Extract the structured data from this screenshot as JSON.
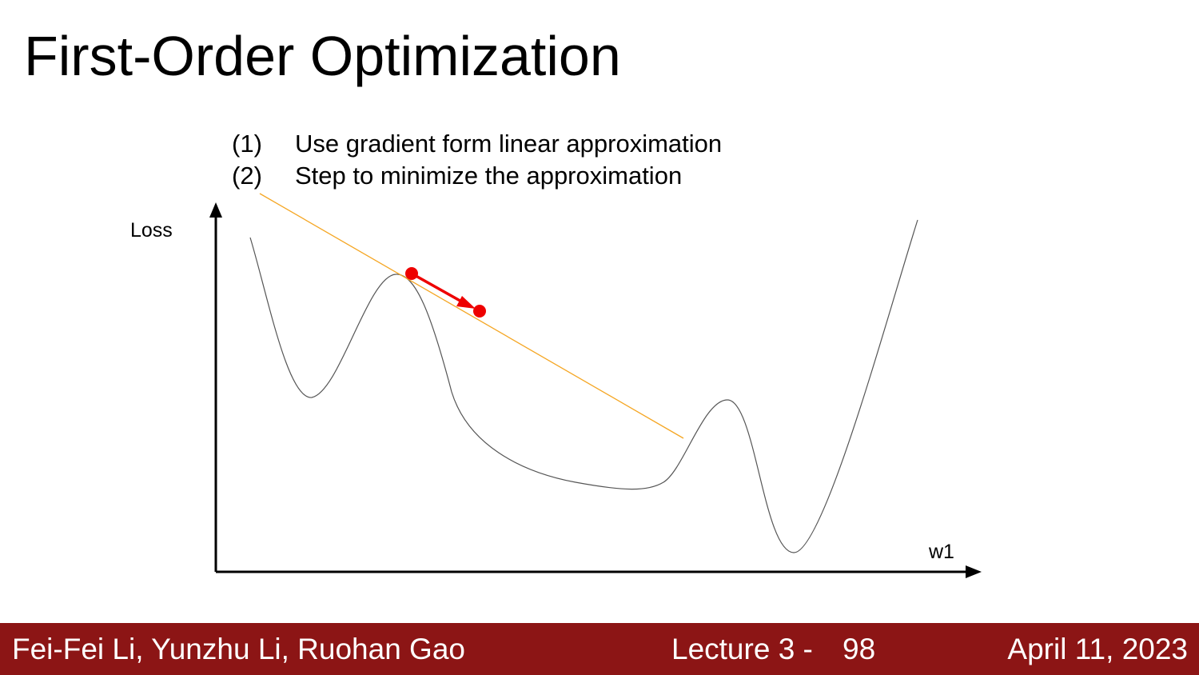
{
  "slide": {
    "title": "First-Order Optimization",
    "steps": [
      {
        "number": "(1)",
        "text": "Use gradient form linear approximation"
      },
      {
        "number": "(2)",
        "text": "Step to minimize the approximation"
      }
    ]
  },
  "diagram": {
    "y_axis_label": "Loss",
    "x_axis_label": "w1",
    "colors": {
      "curve": "#555555",
      "tangent": "#f5a623",
      "step_arrow": "#ee0000",
      "axes": "#000000"
    }
  },
  "footer": {
    "authors": "Fei-Fei Li, Yunzhu Li, Ruohan Gao",
    "lecture": "Lecture 3 -",
    "page": "98",
    "date": "April 11, 2023",
    "background": "#8c1515"
  }
}
